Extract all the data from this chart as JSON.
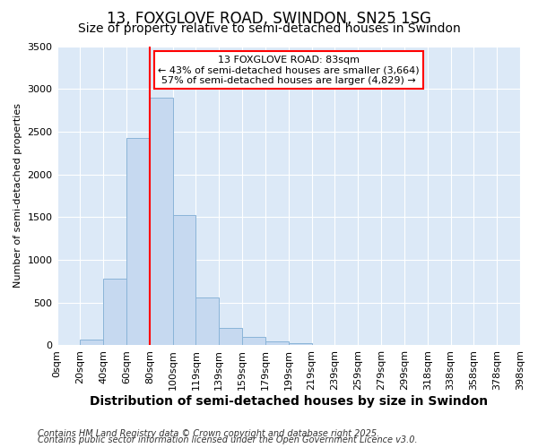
{
  "title_line1": "13, FOXGLOVE ROAD, SWINDON, SN25 1SG",
  "title_line2": "Size of property relative to semi-detached houses in Swindon",
  "xlabel": "Distribution of semi-detached houses by size in Swindon",
  "ylabel": "Number of semi-detached properties",
  "footnote1": "Contains HM Land Registry data © Crown copyright and database right 2025.",
  "footnote2": "Contains public sector information licensed under the Open Government Licence v3.0.",
  "annotation_line1": "13 FOXGLOVE ROAD: 83sqm",
  "annotation_line2": "← 43% of semi-detached houses are smaller (3,664)",
  "annotation_line3": "57% of semi-detached houses are larger (4,829) →",
  "bar_values": [
    5,
    65,
    780,
    2430,
    2900,
    1520,
    560,
    200,
    100,
    50,
    30,
    10,
    5,
    3,
    1,
    1,
    0,
    0,
    0,
    0
  ],
  "bin_labels": [
    "0sqm",
    "20sqm",
    "40sqm",
    "60sqm",
    "80sqm",
    "100sqm",
    "119sqm",
    "139sqm",
    "159sqm",
    "179sqm",
    "199sqm",
    "219sqm",
    "239sqm",
    "259sqm",
    "279sqm",
    "299sqm",
    "318sqm",
    "338sqm",
    "358sqm",
    "378sqm",
    "398sqm"
  ],
  "bar_color": "#c6d9f0",
  "bar_edge_color": "#8ab4d8",
  "red_line_x": 4.0,
  "ylim": [
    0,
    3500
  ],
  "yticks": [
    0,
    500,
    1000,
    1500,
    2000,
    2500,
    3000,
    3500
  ],
  "annotation_box_color": "white",
  "annotation_box_edge_color": "red",
  "fig_bg_color": "#ffffff",
  "plot_bg_color": "#dce9f7",
  "grid_color": "#ffffff",
  "title1_fontsize": 12,
  "title2_fontsize": 10,
  "ylabel_fontsize": 8,
  "xlabel_fontsize": 10,
  "tick_fontsize": 8,
  "footnote_fontsize": 7
}
